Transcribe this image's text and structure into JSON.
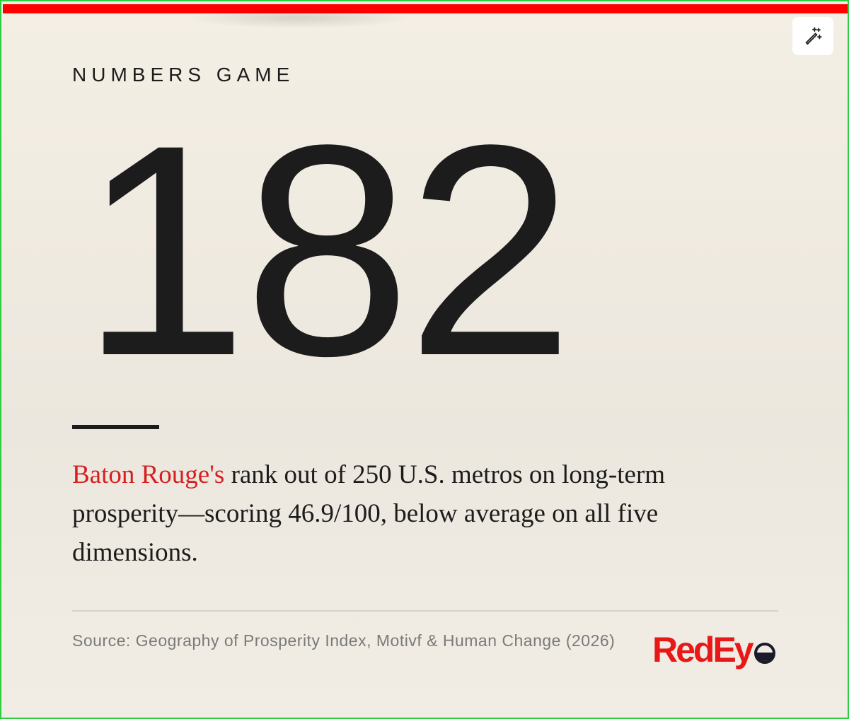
{
  "kicker": "NUMBERS GAME",
  "stat": "182",
  "description": {
    "highlight": "Baton Rouge's",
    "rest": " rank out of 250 U.S. metros on long-term prosperity—scoring 46.9/100, below average on all five dimensions."
  },
  "source": "Source: Geography of Prosperity Index, Motivf & Human Change (2026)",
  "logo": {
    "text": "RedEy",
    "icon": "eye-icon"
  },
  "toolbar": {
    "icon": "magic-wand-icon"
  },
  "colors": {
    "accent": "#ff0000",
    "highlight": "#d42020",
    "logo": "#e81818",
    "background": "#f4efe4",
    "text": "#1c1c1c",
    "border": "#2ecc40"
  }
}
